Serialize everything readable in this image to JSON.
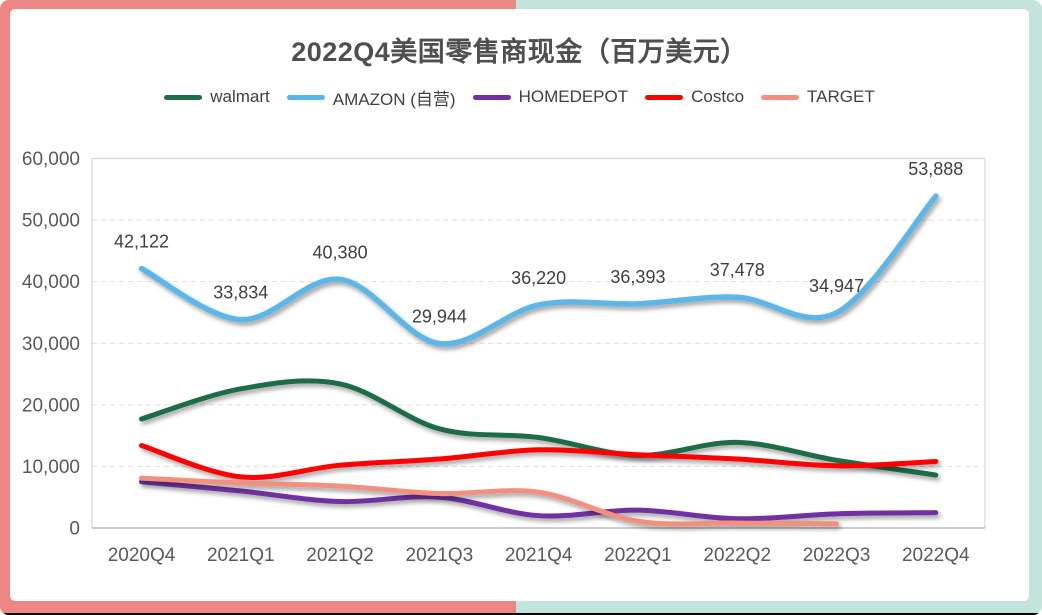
{
  "frame": {
    "left_color": "#EE8585",
    "right_color": "#C3E3DD",
    "bottom_strip_color": "#000000",
    "card_color": "#ffffff"
  },
  "chart_data": {
    "type": "line",
    "title": "2022Q4美国零售商现金（百万美元）",
    "smooth": true,
    "grid": "dashed",
    "legend_position": "top",
    "xlabel": "",
    "ylabel": "",
    "ylim": [
      0,
      60000
    ],
    "ytick_interval": 10000,
    "ytick_labels": [
      "0",
      "10,000",
      "20,000",
      "30,000",
      "40,000",
      "50,000",
      "60,000"
    ],
    "categories": [
      "2020Q4",
      "2021Q1",
      "2021Q2",
      "2021Q3",
      "2021Q4",
      "2022Q1",
      "2022Q2",
      "2022Q3",
      "2022Q4"
    ],
    "series": [
      {
        "name": "walmart",
        "color": "#1F6C47",
        "values": [
          17700,
          22600,
          23400,
          16100,
          14700,
          11800,
          13900,
          11000,
          8600
        ]
      },
      {
        "name": "AMAZON (自营)",
        "color": "#5BB6E8",
        "values": [
          42122,
          33834,
          40380,
          29944,
          36220,
          36393,
          37478,
          34947,
          53888
        ],
        "data_labels": [
          "42,122",
          "33,834",
          "40,380",
          "29,944",
          "36,220",
          "36,393",
          "37,478",
          "34,947",
          "53,888"
        ]
      },
      {
        "name": "HOMEDEPOT",
        "color": "#7030A0",
        "values": [
          7500,
          6000,
          4300,
          5000,
          2000,
          2900,
          1500,
          2300,
          2500
        ]
      },
      {
        "name": "Costco",
        "color": "#FF0000",
        "values": [
          13400,
          8300,
          10200,
          11200,
          12700,
          11900,
          11200,
          10100,
          10800
        ]
      },
      {
        "name": "TARGET",
        "color": "#F2907F",
        "values": [
          8100,
          7300,
          6800,
          5600,
          5800,
          1100,
          800,
          700,
          null
        ]
      }
    ]
  }
}
